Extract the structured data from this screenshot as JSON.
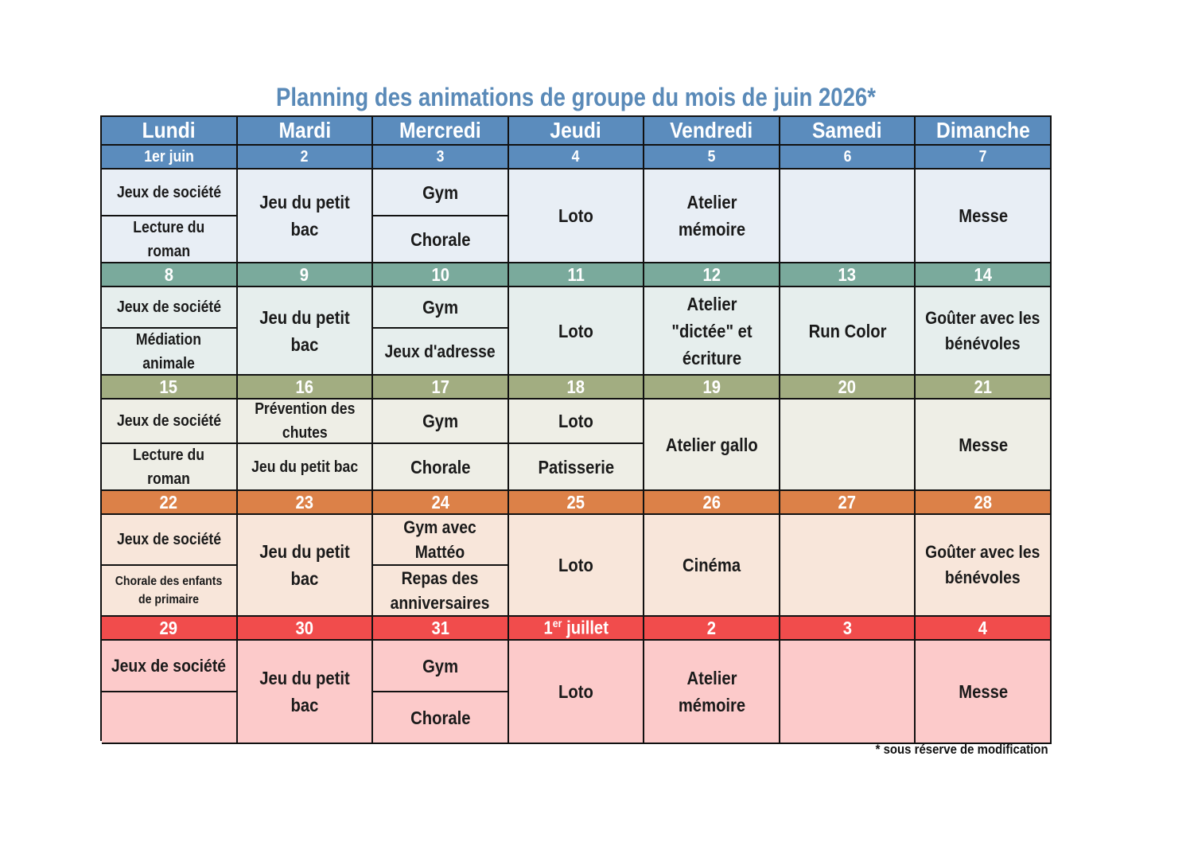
{
  "title": "Planning des animations de groupe du mois de juin 2026*",
  "footnote": "* sous réserve de modification",
  "colors": {
    "header": "#5b8cbd",
    "week1_dates": "#5b8cbd",
    "week1_cells": "#e8eef5",
    "week2_dates": "#7aaa9c",
    "week2_cells": "#e6eeed",
    "week3_dates": "#a2ad81",
    "week3_cells": "#eeeee6",
    "week4_dates": "#dc8148",
    "week4_cells": "#f8e6da",
    "week5_dates": "#f14c4c",
    "week5_cells": "#fccaca"
  },
  "days": [
    "Lundi",
    "Mardi",
    "Mercredi",
    "Jeudi",
    "Vendredi",
    "Samedi",
    "Dimanche"
  ],
  "weeks": [
    {
      "dates": [
        "1er juin",
        "2",
        "3",
        "4",
        "5",
        "6",
        "7"
      ],
      "activities": {
        "lundi_1": "Jeux de société",
        "lundi_2": "Lecture du roman",
        "mardi": "Jeu du petit bac",
        "mercredi_1": "Gym",
        "mercredi_2": "Chorale",
        "jeudi": "Loto",
        "vendredi": "Atelier mémoire",
        "samedi": "",
        "dimanche": "Messe"
      }
    },
    {
      "dates": [
        "8",
        "9",
        "10",
        "11",
        "12",
        "13",
        "14"
      ],
      "activities": {
        "lundi_1": "Jeux de société",
        "lundi_2": "Médiation animale",
        "mardi": "Jeu du petit bac",
        "mercredi_1": "Gym",
        "mercredi_2": "Jeux d'adresse",
        "jeudi": "Loto",
        "vendredi": "Atelier \"dictée\" et écriture",
        "samedi": "Run Color",
        "dimanche": "Goûter avec les bénévoles"
      }
    },
    {
      "dates": [
        "15",
        "16",
        "17",
        "18",
        "19",
        "20",
        "21"
      ],
      "activities": {
        "lundi_1": "Jeux de société",
        "lundi_2": "Lecture du roman",
        "mardi_1": "Prévention des chutes",
        "mardi_2": "Jeu du petit bac",
        "mercredi_1": "Gym",
        "mercredi_2": "Chorale",
        "jeudi_1": "Loto",
        "jeudi_2": "Patisserie",
        "vendredi": "Atelier gallo",
        "samedi": "",
        "dimanche": "Messe"
      }
    },
    {
      "dates": [
        "22",
        "23",
        "24",
        "25",
        "26",
        "27",
        "28"
      ],
      "activities": {
        "lundi_1": "Jeux de société",
        "lundi_2": "Chorale des enfants de primaire",
        "mardi": "Jeu du petit bac",
        "mercredi_1": "Gym avec Mattéo",
        "mercredi_2": "Repas des anniversaires",
        "jeudi": "Loto",
        "vendredi": "Cinéma",
        "samedi": "",
        "dimanche": "Goûter avec les bénévoles"
      }
    },
    {
      "dates": [
        "29",
        "30",
        "31",
        "1",
        "2",
        "3",
        "4"
      ],
      "date_jeudi_sup": "er",
      "date_jeudi_rest": " juillet",
      "activities": {
        "lundi_1": "Jeux de société",
        "lundi_2": "",
        "mardi": "Jeu du petit bac",
        "mercredi_1": "Gym",
        "mercredi_2": "Chorale",
        "jeudi": "Loto",
        "vendredi": "Atelier mémoire",
        "samedi": "",
        "dimanche": "Messe"
      }
    }
  ]
}
